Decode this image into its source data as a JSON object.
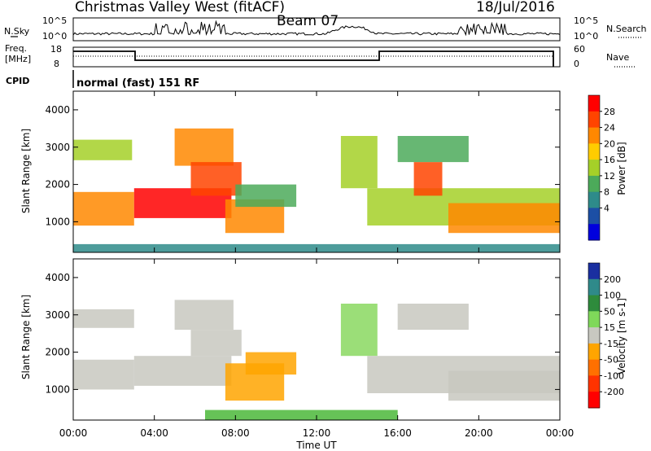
{
  "header": {
    "title": "Christmas Valley West (fitACF)",
    "beam": "Beam 07",
    "date": "18/Jul/2016"
  },
  "noise_panel": {
    "left_label": "N.Sky",
    "left_ticks": [
      "10^5",
      "10^0"
    ],
    "right_label": "N.Search",
    "right_ticks": [
      "10^5",
      "10^0"
    ]
  },
  "freq_panel": {
    "left_label_1": "Freq.",
    "left_label_2": "[MHz]",
    "left_ticks": [
      "18",
      "8"
    ],
    "right_label": "Nave",
    "right_ticks": [
      "60",
      "0"
    ]
  },
  "cpid": {
    "label": "CPID",
    "value": "normal (fast) 151 RF"
  },
  "chart_data": [
    {
      "type": "heatmap",
      "name": "power",
      "ylabel": "Slant Range [km]",
      "xlabel": "",
      "ylim": [
        180,
        4500
      ],
      "yticks": [
        "1000",
        "2000",
        "3000",
        "4000"
      ],
      "colorbar": {
        "label": "Power [dB]",
        "ticks": [
          "28",
          "24",
          "20",
          "16",
          "12",
          "8",
          "4"
        ],
        "colors": [
          "#ff0000",
          "#ff4400",
          "#ff8800",
          "#ffcc00",
          "#a5d028",
          "#4caa5a",
          "#2e8b8a",
          "#1c4fa5",
          "#0000dd"
        ]
      },
      "regions": [
        {
          "t0": 0.0,
          "t1": 2.9,
          "r0": 2650,
          "r1": 3200,
          "level": 0.45
        },
        {
          "t0": 0.0,
          "t1": 3.0,
          "r0": 900,
          "r1": 1800,
          "level": 0.8
        },
        {
          "t0": 3.0,
          "t1": 7.8,
          "r0": 1100,
          "r1": 1900,
          "level": 0.95
        },
        {
          "t0": 5.0,
          "t1": 7.9,
          "r0": 2500,
          "r1": 3500,
          "level": 0.8
        },
        {
          "t0": 5.8,
          "t1": 8.3,
          "r0": 1700,
          "r1": 2600,
          "level": 0.85
        },
        {
          "t0": 7.5,
          "t1": 10.4,
          "r0": 700,
          "r1": 1600,
          "level": 0.7
        },
        {
          "t0": 8.0,
          "t1": 11.0,
          "r0": 1400,
          "r1": 2000,
          "level": 0.4
        },
        {
          "t0": 13.2,
          "t1": 15.0,
          "r0": 1900,
          "r1": 3300,
          "level": 0.45
        },
        {
          "t0": 14.5,
          "t1": 24.0,
          "r0": 900,
          "r1": 1900,
          "level": 0.5
        },
        {
          "t0": 16.8,
          "t1": 18.2,
          "r0": 1700,
          "r1": 2600,
          "level": 0.9
        },
        {
          "t0": 18.5,
          "t1": 24.0,
          "r0": 700,
          "r1": 1500,
          "level": 0.7
        },
        {
          "t0": 16.0,
          "t1": 19.5,
          "r0": 2600,
          "r1": 3300,
          "level": 0.35
        },
        {
          "t0": 0.0,
          "t1": 24.0,
          "r0": 180,
          "r1": 400,
          "level": 0.3
        }
      ]
    },
    {
      "type": "heatmap",
      "name": "velocity",
      "ylabel": "Slant Range [km]",
      "xlabel": "Time UT",
      "ylim": [
        180,
        4500
      ],
      "yticks": [
        "1000",
        "2000",
        "3000",
        "4000"
      ],
      "xticks": [
        "00:00",
        "04:00",
        "08:00",
        "12:00",
        "16:00",
        "20:00",
        "00:00"
      ],
      "colorbar": {
        "label": "Velocity [m s-1]",
        "ticks": [
          "200",
          "100",
          "50",
          "15",
          "-15",
          "-50",
          "-100",
          "-200"
        ],
        "colors": [
          "#1a2fa0",
          "#2f8a8a",
          "#2e8b3c",
          "#7fd85a",
          "#c8c8c0",
          "#ffa500",
          "#ff7000",
          "#ff3300",
          "#ff0000"
        ]
      },
      "regions": [
        {
          "t0": 0.0,
          "t1": 3.0,
          "r0": 2650,
          "r1": 3150,
          "color": "#c8c8c0"
        },
        {
          "t0": 0.0,
          "t1": 3.0,
          "r0": 1000,
          "r1": 1800,
          "color": "#c8c8c0"
        },
        {
          "t0": 3.0,
          "t1": 7.8,
          "r0": 1100,
          "r1": 1900,
          "color": "#c8c8c0"
        },
        {
          "t0": 5.0,
          "t1": 7.9,
          "r0": 2600,
          "r1": 3400,
          "color": "#c8c8c0"
        },
        {
          "t0": 5.8,
          "t1": 8.3,
          "r0": 1900,
          "r1": 2600,
          "color": "#c8c8c0"
        },
        {
          "t0": 7.5,
          "t1": 10.4,
          "r0": 700,
          "r1": 1700,
          "color": "#ffa500"
        },
        {
          "t0": 8.5,
          "t1": 11.0,
          "r0": 1400,
          "r1": 2000,
          "color": "#ffa500"
        },
        {
          "t0": 13.2,
          "t1": 15.0,
          "r0": 1900,
          "r1": 3300,
          "color": "#8ad860"
        },
        {
          "t0": 14.5,
          "t1": 24.0,
          "r0": 900,
          "r1": 1900,
          "color": "#c8c8c0"
        },
        {
          "t0": 18.5,
          "t1": 24.0,
          "r0": 700,
          "r1": 1500,
          "color": "#c8c8c0"
        },
        {
          "t0": 16.0,
          "t1": 19.5,
          "r0": 2600,
          "r1": 3300,
          "color": "#c8c8c0"
        },
        {
          "t0": 6.5,
          "t1": 16.0,
          "r0": 180,
          "r1": 450,
          "color": "#4bb83a"
        }
      ]
    }
  ]
}
